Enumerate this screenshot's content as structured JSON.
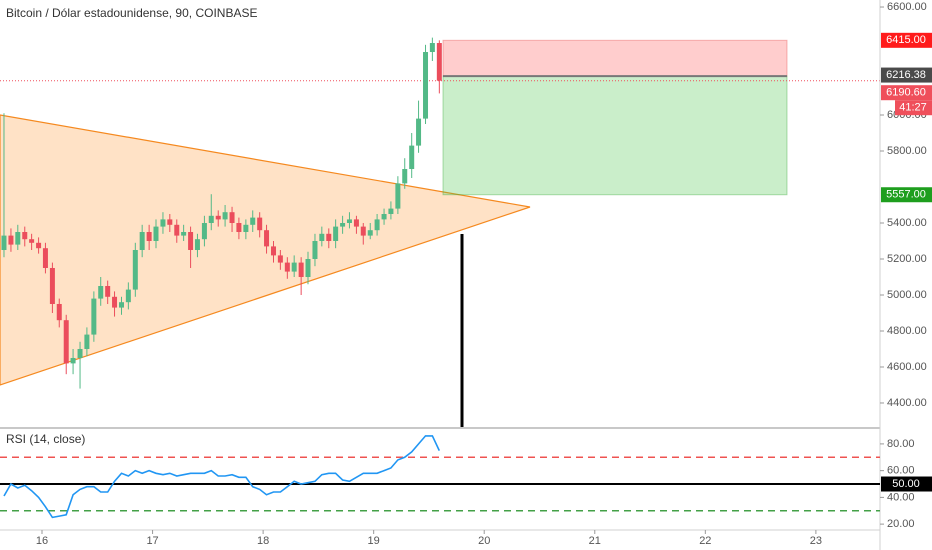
{
  "chart_data": [
    {
      "type": "candlestick",
      "title": "Bitcoin / Dólar estadounidense, 90, COINBASE",
      "up_color": "#53b987",
      "down_color": "#eb4d5c",
      "x": [
        15.656,
        15.719,
        15.781,
        15.844,
        15.906,
        15.969,
        16.031,
        16.094,
        16.156,
        16.219,
        16.281,
        16.344,
        16.406,
        16.469,
        16.531,
        16.594,
        16.656,
        16.719,
        16.781,
        16.844,
        16.906,
        16.969,
        17.031,
        17.094,
        17.156,
        17.219,
        17.281,
        17.344,
        17.406,
        17.469,
        17.531,
        17.594,
        17.656,
        17.719,
        17.781,
        17.844,
        17.906,
        17.969,
        18.031,
        18.094,
        18.156,
        18.219,
        18.281,
        18.344,
        18.406,
        18.469,
        18.531,
        18.594,
        18.656,
        18.719,
        18.781,
        18.844,
        18.906,
        18.969,
        19.031,
        19.094,
        19.156,
        19.219,
        19.281,
        19.344,
        19.406,
        19.469,
        19.531,
        19.594
      ],
      "open": [
        5250,
        5330,
        5280,
        5350,
        5310,
        5290,
        5260,
        5150,
        4950,
        4860,
        4620,
        4650,
        4700,
        4780,
        4980,
        5050,
        4990,
        4930,
        4960,
        5030,
        5250,
        5350,
        5300,
        5380,
        5420,
        5390,
        5330,
        5350,
        5250,
        5310,
        5400,
        5440,
        5420,
        5460,
        5400,
        5350,
        5390,
        5430,
        5360,
        5270,
        5220,
        5180,
        5130,
        5180,
        5100,
        5200,
        5300,
        5340,
        5300,
        5380,
        5400,
        5420,
        5380,
        5330,
        5360,
        5420,
        5450,
        5480,
        5620,
        5700,
        5830,
        5980,
        6350,
        6400
      ],
      "high": [
        6010,
        5370,
        5390,
        5380,
        5340,
        5320,
        5290,
        5180,
        4980,
        4890,
        4700,
        4740,
        4820,
        5020,
        5100,
        5080,
        5020,
        4990,
        5070,
        5290,
        5390,
        5390,
        5420,
        5460,
        5450,
        5420,
        5390,
        5380,
        5340,
        5440,
        5560,
        5470,
        5500,
        5490,
        5430,
        5420,
        5470,
        5460,
        5390,
        5300,
        5250,
        5210,
        5220,
        5210,
        5240,
        5340,
        5380,
        5370,
        5420,
        5440,
        5460,
        5440,
        5400,
        5400,
        5450,
        5480,
        5520,
        5660,
        5760,
        5900,
        6080,
        6390,
        6430,
        6415
      ],
      "low": [
        5210,
        5240,
        5250,
        5270,
        5250,
        5230,
        5120,
        4900,
        4820,
        4560,
        4560,
        4480,
        4660,
        4740,
        4940,
        4950,
        4880,
        4890,
        4920,
        4990,
        5210,
        5250,
        5260,
        5340,
        5350,
        5290,
        5300,
        5150,
        5210,
        5270,
        5360,
        5380,
        5380,
        5350,
        5310,
        5310,
        5350,
        5320,
        5230,
        5180,
        5140,
        5090,
        5100,
        5000,
        5060,
        5160,
        5270,
        5260,
        5260,
        5340,
        5370,
        5340,
        5280,
        5310,
        5330,
        5390,
        5420,
        5450,
        5590,
        5650,
        5790,
        5950,
        6300,
        6120
      ],
      "close": [
        5330,
        5280,
        5350,
        5310,
        5290,
        5260,
        5150,
        4950,
        4860,
        4620,
        4650,
        4700,
        4780,
        4980,
        5050,
        4990,
        4930,
        4960,
        5030,
        5250,
        5350,
        5300,
        5380,
        5420,
        5390,
        5330,
        5350,
        5250,
        5310,
        5400,
        5440,
        5420,
        5460,
        5400,
        5350,
        5390,
        5430,
        5360,
        5270,
        5220,
        5180,
        5130,
        5180,
        5100,
        5200,
        5300,
        5340,
        5300,
        5380,
        5400,
        5420,
        5380,
        5330,
        5360,
        5420,
        5450,
        5480,
        5620,
        5700,
        5830,
        5980,
        6350,
        6400,
        6190.6
      ],
      "xlim": [
        15.62,
        23.58
      ],
      "xticks": [
        16,
        17,
        18,
        19,
        20,
        21,
        22,
        23
      ],
      "ylim": [
        4261,
        6639
      ],
      "yticks": [
        {
          "value": 4400,
          "label": "4400.00"
        },
        {
          "value": 4600,
          "label": "4600.00"
        },
        {
          "value": 4800,
          "label": "4800.00"
        },
        {
          "value": 5000,
          "label": "5000.00"
        },
        {
          "value": 5200,
          "label": "5200.00"
        },
        {
          "value": 5400,
          "label": "5400.00"
        },
        {
          "value": 5800,
          "label": "5800.00"
        },
        {
          "value": 6000,
          "label": "6000.00"
        },
        {
          "value": 6600,
          "label": "6600.00"
        }
      ],
      "price_labels": [
        {
          "value": 6415,
          "label": "6415.00",
          "color": "#ff1b1b"
        },
        {
          "value": 6216.38,
          "label": "6216.38",
          "color": "#4a4a4a"
        },
        {
          "value": 6190.6,
          "label": "6190.60",
          "color": "#ef4f5b"
        },
        {
          "value": 5557,
          "label": "5557.00",
          "color": "#1e9e1e"
        }
      ],
      "countdown": "41:27"
    },
    {
      "type": "line",
      "title": "RSI (14, close)",
      "color": "#2196f3",
      "values": [
        41,
        50,
        47,
        49,
        45,
        40,
        33,
        25,
        26,
        27,
        42,
        46,
        48,
        48,
        44,
        44,
        52,
        58,
        56,
        60,
        58,
        60,
        58,
        57,
        58,
        56,
        57,
        58,
        58,
        58,
        60,
        56,
        56,
        57,
        55,
        55,
        48,
        46,
        42,
        44,
        44,
        48,
        52,
        50,
        51,
        52,
        57,
        58,
        58,
        53,
        52,
        55,
        58,
        58,
        58,
        60,
        62,
        68,
        70,
        74,
        80,
        86,
        86,
        75
      ],
      "ylim": [
        15.6,
        90.4
      ],
      "yticks": [
        {
          "value": 20,
          "label": "20.00"
        },
        {
          "value": 40,
          "label": "40.00"
        },
        {
          "value": 60,
          "label": "60.00"
        },
        {
          "value": 80,
          "label": "80.00"
        }
      ],
      "upper_band": 70,
      "lower_band": 30,
      "midline": {
        "value": 50,
        "label": "50.00"
      }
    }
  ]
}
